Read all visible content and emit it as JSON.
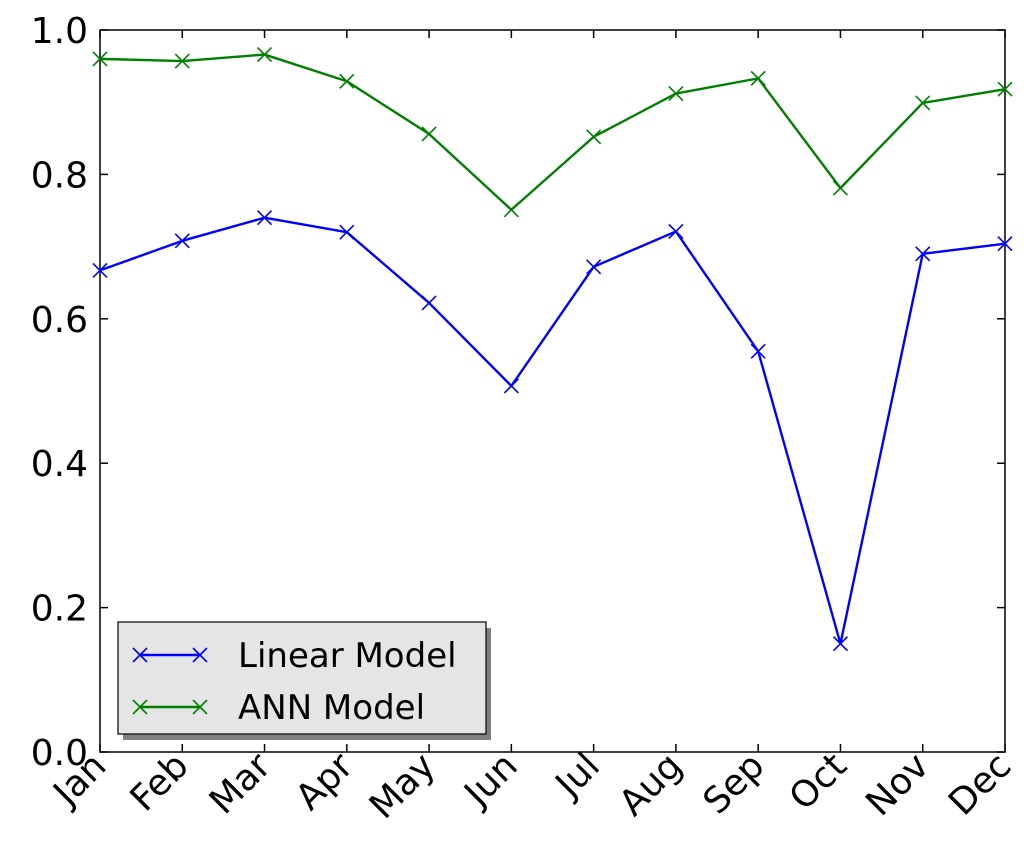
{
  "chart_data": {
    "type": "line",
    "categories": [
      "Jan",
      "Feb",
      "Mar",
      "Apr",
      "May",
      "Jun",
      "Jul",
      "Aug",
      "Sep",
      "Oct",
      "Nov",
      "Dec"
    ],
    "series": [
      {
        "name": "Linear Model",
        "color": "#0000ff",
        "marker": "x",
        "values": [
          0.667,
          0.708,
          0.74,
          0.72,
          0.622,
          0.507,
          0.672,
          0.721,
          0.555,
          0.15,
          0.69,
          0.704
        ]
      },
      {
        "name": "ANN Model",
        "color": "#008000",
        "marker": "x",
        "values": [
          0.96,
          0.957,
          0.966,
          0.929,
          0.856,
          0.751,
          0.852,
          0.912,
          0.933,
          0.781,
          0.899,
          0.918
        ]
      }
    ],
    "ylim": [
      0.0,
      1.0
    ],
    "yticks": [
      "0.0",
      "0.2",
      "0.4",
      "0.6",
      "0.8",
      "1.0"
    ],
    "ytick_values": [
      0.0,
      0.2,
      0.4,
      0.6,
      0.8,
      1.0
    ],
    "xtick_rotation": "45 degrees",
    "legend_placement": "lower-left",
    "grid": false
  }
}
